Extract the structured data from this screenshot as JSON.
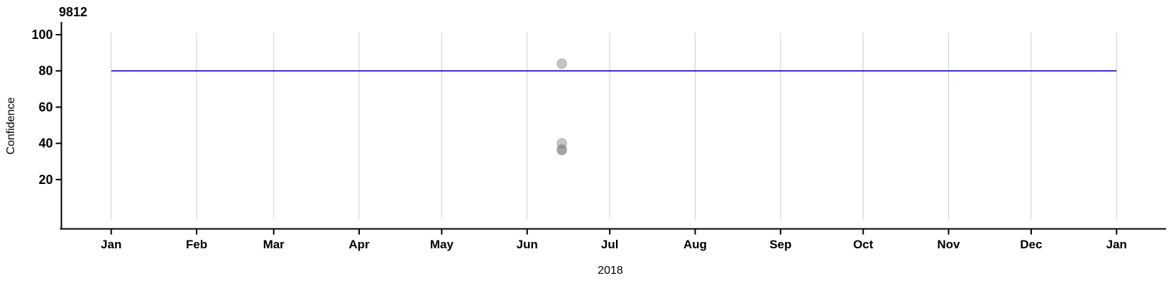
{
  "chart_data": {
    "type": "scatter",
    "title": "9812",
    "ylabel": "Confidence",
    "xlabel": "2018",
    "x_axis": {
      "kind": "time-months",
      "tick_labels": [
        "Jan",
        "Feb",
        "Mar",
        "Apr",
        "May",
        "Jun",
        "Jul",
        "Aug",
        "Sep",
        "Oct",
        "Nov",
        "Dec",
        "Jan"
      ],
      "tick_days": [
        0,
        31,
        59,
        90,
        120,
        151,
        181,
        212,
        243,
        273,
        304,
        334,
        365
      ],
      "range_days": [
        0,
        365
      ],
      "grid": true
    },
    "y_axis": {
      "ticks": [
        20,
        40,
        60,
        80,
        100
      ],
      "range": [
        0,
        105
      ],
      "grid": false
    },
    "points": [
      {
        "date": "2018-06-13",
        "day": 163.6,
        "value": 84
      },
      {
        "date": "2018-06-13",
        "day": 163.6,
        "value": 40
      },
      {
        "date": "2018-06-13",
        "day": 163.6,
        "value": 36.8
      },
      {
        "date": "2018-06-13",
        "day": 163.6,
        "value": 36.2
      }
    ],
    "reference_line": {
      "value": 80,
      "from_day": 0,
      "to_day": 365,
      "color": "#0000e0"
    },
    "legend": null,
    "colors": {
      "grid": "#d0d0d0",
      "axis": "#000000",
      "text": "#000000",
      "point_fill": "#787878",
      "point_stroke": "#9a9a9a",
      "point_fill_opacity": 0.42,
      "reference_line": "#0000e0"
    }
  }
}
